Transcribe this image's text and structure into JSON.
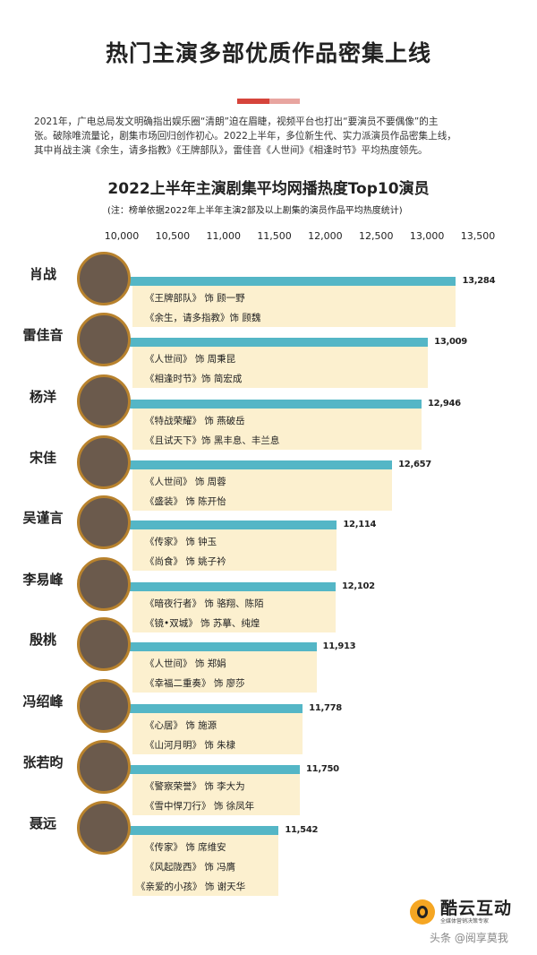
{
  "header": {
    "title": "热门主演多部优质作品密集上线",
    "accent_colors": [
      "#d6443b",
      "#e8a5a0"
    ]
  },
  "intro": {
    "lines": [
      "2021年，广电总局发文明确指出娱乐圈“清朗”迫在眉睫，视频平台也打出“要演员不要偶像”的主",
      "张。破除唯流量论，剧集市场回归创作初心。2022上半年，多位新生代、实力派演员作品密集上线，",
      "其中肖战主演《余生，请多指教》《王牌部队》，雷佳音《人世间》《相逢时节》平均热度领先。"
    ]
  },
  "chart_data": {
    "type": "bar",
    "orientation": "horizontal",
    "title": "2022上半年主演剧集平均网播热度Top10演员",
    "note": "(注：榜单依据2022年上半年主演2部及以上剧集的演员作品平均热度统计)",
    "xlim": [
      10000,
      13500
    ],
    "xticks": [
      "10,000",
      "10,500",
      "11,000",
      "11,500",
      "12,000",
      "12,500",
      "13,000",
      "13,500"
    ],
    "bar_color": "#54b6c6",
    "box_color": "#fcf0cf",
    "categories": [
      "肖战",
      "雷佳音",
      "杨洋",
      "宋佳",
      "吴谨言",
      "李易峰",
      "殷桃",
      "冯绍峰",
      "张若昀",
      "聂远"
    ],
    "values": [
      13284,
      13009,
      12946,
      12657,
      12114,
      12102,
      11913,
      11778,
      11750,
      11542
    ],
    "value_labels": [
      "13,284",
      "13,009",
      "12,946",
      "12,657",
      "12,114",
      "12,102",
      "11,913",
      "11,778",
      "11,750",
      "11,542"
    ],
    "roles": [
      [
        "《王牌部队》 饰 顾一野",
        "《余生，请多指教》饰 顾魏"
      ],
      [
        "《人世间》 饰 周秉昆",
        "《相逢时节》饰 简宏成"
      ],
      [
        "《特战荣耀》 饰 燕破岳",
        "《且试天下》饰  黑丰息、丰兰息"
      ],
      [
        "《人世间》 饰 周蓉",
        "《盛装》 饰 陈开怡"
      ],
      [
        "《传家》 饰 钟玉",
        "《尚食》 饰 姚子衿"
      ],
      [
        "《暗夜行者》 饰 骆翔、陈陌",
        "《镜•双城》 饰 苏摹、纯煌"
      ],
      [
        "《人世间》 饰 郑娟",
        "《幸福二重奏》 饰 廖莎"
      ],
      [
        "《心居》 饰 施源",
        "《山河月明》 饰 朱棣"
      ],
      [
        "《警察荣誉》 饰 李大为",
        "《雪中悍刀行》 饰 徐凤年"
      ],
      [
        "《传家》 饰 席维安",
        "《风起陇西》 饰 冯膺",
        "《亲爱的小孩》 饰 谢天华"
      ]
    ]
  },
  "footer": {
    "logo_name": "酷云互动",
    "logo_tagline": "全媒体营销决策专家",
    "watermark": "头条 @阅享莫我"
  }
}
